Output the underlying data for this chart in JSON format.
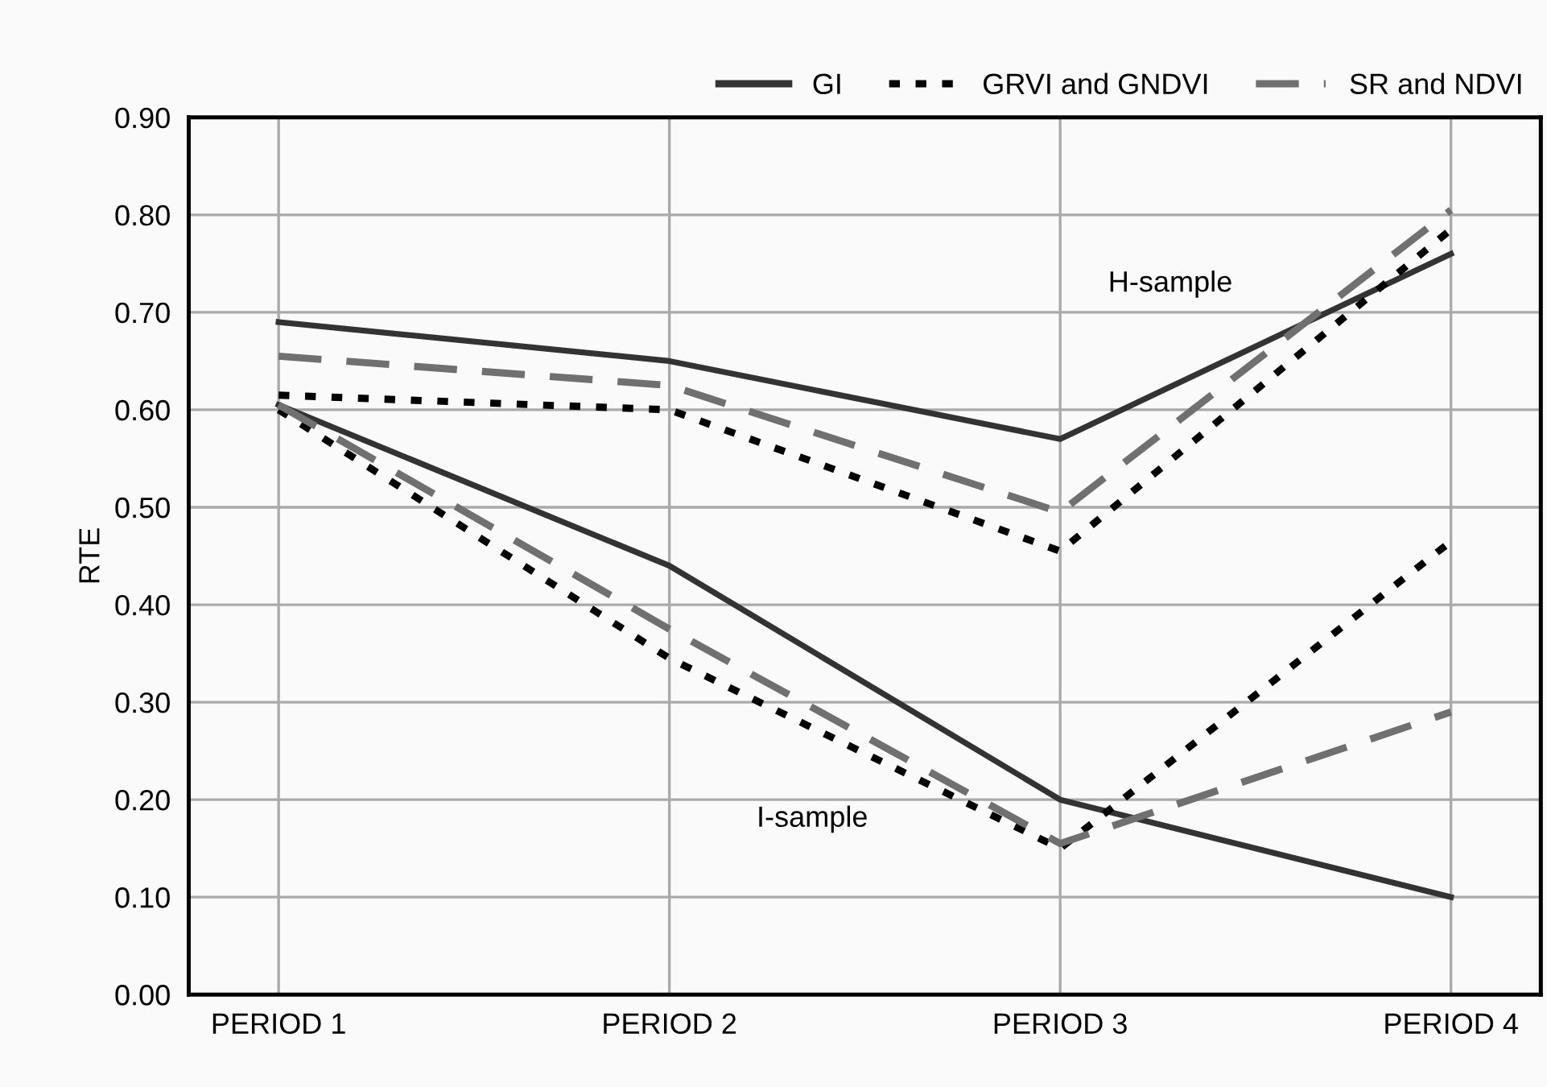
{
  "chart_data": {
    "type": "line",
    "ylabel": "RTE",
    "categories": [
      "PERIOD 1",
      "PERIOD 2",
      "PERIOD 3",
      "PERIOD 4"
    ],
    "series": [
      {
        "name": "GI",
        "color": "#333333",
        "line_style": "solid",
        "values": [
          0.69,
          0.65,
          0.57,
          0.76
        ]
      },
      {
        "name": "GRVI and GNDVI",
        "color": "#000000",
        "line_style": "dotted",
        "values": [
          0.615,
          0.6,
          0.455,
          0.785
        ]
      },
      {
        "name": "SR and NDVI",
        "color": "#707070",
        "line_style": "dashed",
        "values": [
          0.655,
          0.625,
          0.495,
          0.805
        ]
      },
      {
        "color": "#333333",
        "line_style": "solid",
        "values": [
          0.605,
          0.44,
          0.2,
          0.1
        ]
      },
      {
        "color": "#000000",
        "line_style": "dotted",
        "values": [
          0.6,
          0.345,
          0.15,
          0.465
        ]
      },
      {
        "color": "#707070",
        "line_style": "dashed",
        "values": [
          0.605,
          0.375,
          0.155,
          0.29
        ]
      }
    ],
    "annotations": [
      "H-sample",
      "I-sample"
    ],
    "ylim": [
      0,
      0.9
    ],
    "yticks": [
      {
        "value": 0,
        "label": "0.00"
      },
      {
        "value": 0.1,
        "label": "0.10"
      },
      {
        "value": 0.2,
        "label": "0.20"
      },
      {
        "value": 0.3,
        "label": "0.30"
      },
      {
        "value": 0.4,
        "label": "0.40"
      },
      {
        "value": 0.5,
        "label": "0.50"
      },
      {
        "value": 0.6,
        "label": "0.60"
      },
      {
        "value": 0.7,
        "label": "0.70"
      },
      {
        "value": 0.8,
        "label": "0.80"
      },
      {
        "value": 0.9,
        "label": "0.90"
      }
    ],
    "grid": true,
    "legend": "top right",
    "marker": "none"
  }
}
